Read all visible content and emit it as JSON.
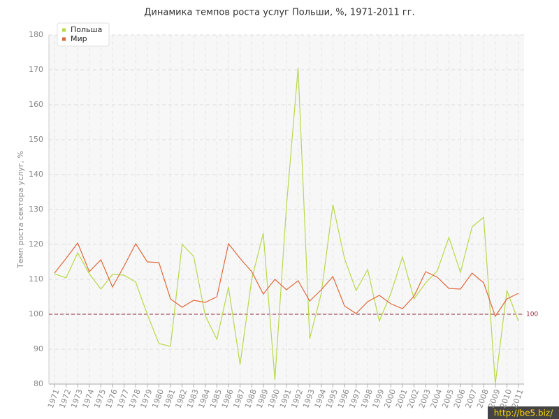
{
  "chart_data": {
    "type": "line",
    "title": "Динамика темпов роста услуг Польши, %, 1971-2011 гг.",
    "y_label": "Темп роста сектора услуг, %",
    "categories": [
      "1971",
      "1972",
      "1973",
      "1974",
      "1975",
      "1976",
      "1977",
      "1978",
      "1979",
      "1980",
      "1981",
      "1982",
      "1983",
      "1984",
      "1985",
      "1986",
      "1987",
      "1988",
      "1989",
      "1990",
      "1991",
      "1992",
      "1993",
      "1994",
      "1995",
      "1996",
      "1997",
      "1998",
      "1999",
      "2000",
      "2001",
      "2002",
      "2003",
      "2004",
      "2005",
      "2006",
      "2007",
      "2008",
      "2009",
      "2010",
      "2011"
    ],
    "series": [
      {
        "name": "Польша",
        "color": "#b8d94a",
        "values": [
          111.6,
          110.4,
          117.6,
          111.6,
          107.2,
          111.4,
          111.2,
          109.2,
          100,
          91.6,
          90.8,
          120,
          116.6,
          99.6,
          92.8,
          107.8,
          85.6,
          110,
          123.2,
          81.2,
          131,
          170.6,
          93,
          106,
          131.4,
          116,
          106.8,
          112.8,
          98,
          106,
          116.4,
          104.4,
          109,
          112.4,
          122,
          112,
          125,
          127.8,
          80,
          106.8,
          98
        ]
      },
      {
        "name": "Мир",
        "color": "#e0683a",
        "values": [
          111.8,
          116,
          120.4,
          112.2,
          115.6,
          107.8,
          113.8,
          120.2,
          115,
          114.8,
          104.4,
          102,
          104,
          103.4,
          105,
          120.2,
          116,
          112.2,
          105.8,
          110,
          107,
          109.6,
          103.8,
          107,
          110.8,
          102.4,
          100.2,
          103.6,
          105.4,
          103,
          101.6,
          105.2,
          112.2,
          110.6,
          107.4,
          107.2,
          111.8,
          109,
          99.4,
          104.4,
          106
        ]
      }
    ],
    "ylim": [
      80,
      180
    ],
    "yticks": [
      80,
      90,
      100,
      110,
      120,
      130,
      140,
      150,
      160,
      170,
      180
    ],
    "grid": true,
    "legend": "top-left",
    "reference_line": 100,
    "reference_color": "#8b2a3a",
    "watermark": "http://be5.biz/"
  }
}
